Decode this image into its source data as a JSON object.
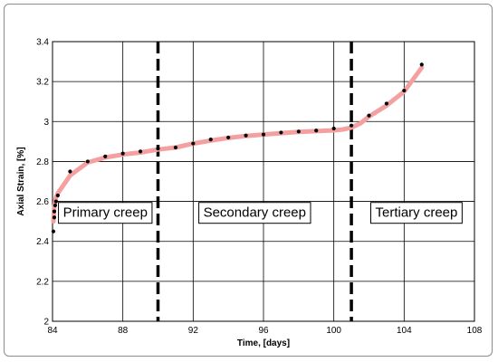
{
  "chart_data": {
    "type": "line",
    "title": "",
    "xlabel": "Time, [days]",
    "ylabel": "Axial Strain, [%]",
    "xlim": [
      84,
      108
    ],
    "ylim": [
      2,
      3.4
    ],
    "x_ticks": [
      84,
      88,
      92,
      96,
      100,
      104,
      108
    ],
    "y_ticks": [
      2,
      2.2,
      2.4,
      2.6,
      2.8,
      3,
      3.2,
      3.4
    ],
    "x_tick_labels": [
      "84",
      "88",
      "92",
      "96",
      "100",
      "104",
      "108"
    ],
    "y_tick_labels": [
      "2",
      "2.2",
      "2.4",
      "2.6",
      "2.8",
      "3",
      "3.2",
      "3.4"
    ],
    "grid": true,
    "series": [
      {
        "name": "",
        "color": "#f4a0a0",
        "x": [
          84.05,
          84.1,
          84.15,
          84.2,
          84.3,
          85,
          86,
          87,
          88,
          89,
          90,
          91,
          92,
          93,
          94,
          95,
          96,
          97,
          98,
          99,
          100,
          100.5,
          101,
          101.5,
          102,
          103,
          104,
          105
        ],
        "y": [
          2.5,
          2.57,
          2.6,
          2.62,
          2.64,
          2.73,
          2.795,
          2.82,
          2.835,
          2.845,
          2.86,
          2.87,
          2.89,
          2.905,
          2.918,
          2.928,
          2.935,
          2.942,
          2.948,
          2.952,
          2.956,
          2.96,
          2.97,
          2.99,
          3.025,
          3.08,
          3.15,
          3.27
        ]
      },
      {
        "name": "",
        "color": "#000000",
        "x": [
          84.05,
          84.1,
          84.1,
          84.15,
          84.2,
          84.3,
          85,
          86,
          87,
          88,
          89,
          90,
          91,
          92,
          93,
          94,
          95,
          96,
          97,
          98,
          99,
          100,
          101,
          102,
          103,
          104,
          105
        ],
        "y": [
          2.45,
          2.52,
          2.55,
          2.58,
          2.6,
          2.63,
          2.75,
          2.8,
          2.825,
          2.84,
          2.85,
          2.865,
          2.87,
          2.89,
          2.91,
          2.92,
          2.93,
          2.935,
          2.945,
          2.95,
          2.955,
          2.965,
          2.98,
          3.03,
          3.09,
          3.155,
          3.285
        ]
      }
    ],
    "vertical_lines": [
      90,
      101
    ],
    "annotations": [
      {
        "text": "Primary creep",
        "x": 87.0,
        "y": 2.545
      },
      {
        "text": "Secondary creep",
        "x": 95.5,
        "y": 2.545
      },
      {
        "text": "Tertiary creep",
        "x": 104.7,
        "y": 2.545
      }
    ]
  }
}
